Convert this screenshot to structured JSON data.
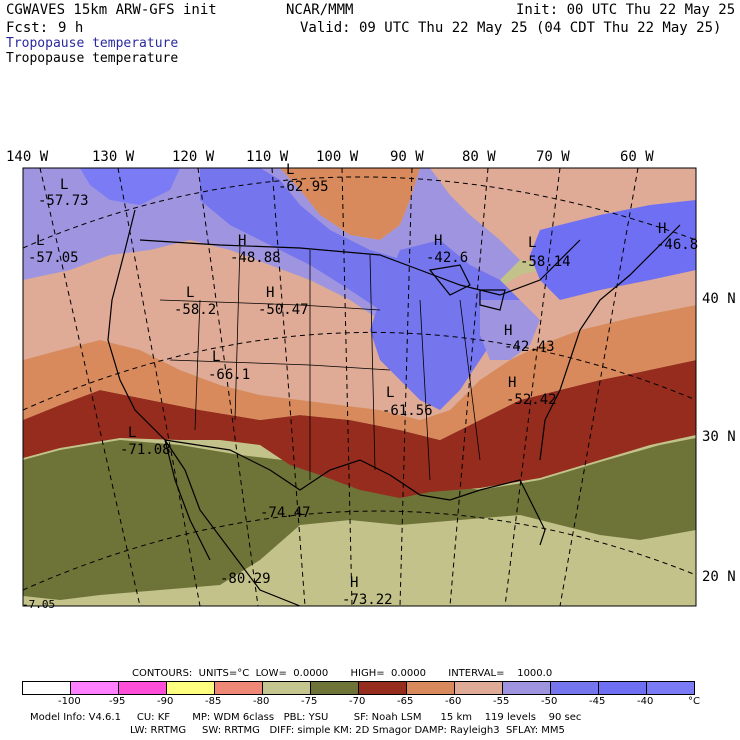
{
  "header": {
    "model": "CGWAVES 15km ARW-GFS init",
    "fcst_label": "Fcst:",
    "fcst_value": "9 h",
    "source": "NCAR/MMM",
    "init": "Init: 00 UTC Thu 22 May 25",
    "valid": "Valid: 09 UTC Thu 22 May 25 (04 CDT Thu 22 May 25)",
    "field1": "Tropopause temperature",
    "field2": "Tropopause temperature"
  },
  "map": {
    "lon_labels": [
      "140 W",
      "130 W",
      "120 W",
      "110 W",
      "100 W",
      "90 W",
      "80 W",
      "70 W",
      "60 W"
    ],
    "lat_labels": [
      "40 N",
      "30 N",
      "20 N"
    ],
    "extrema": [
      {
        "kind": "L",
        "value": "-57.73"
      },
      {
        "kind": "L",
        "value": "-57.05"
      },
      {
        "kind": "L",
        "value": "-62.95"
      },
      {
        "kind": "H",
        "value": "-48.88"
      },
      {
        "kind": "H",
        "value": "-42.6"
      },
      {
        "kind": "L",
        "value": "-58.14"
      },
      {
        "kind": "H",
        "value": "-46.8"
      },
      {
        "kind": "L",
        "value": "-58.2"
      },
      {
        "kind": "H",
        "value": "-50.47"
      },
      {
        "kind": "L",
        "value": "-66.1"
      },
      {
        "kind": "H",
        "value": "-42.43"
      },
      {
        "kind": "L",
        "value": "-61.56"
      },
      {
        "kind": "H",
        "value": "-52.42"
      },
      {
        "kind": "L",
        "value": "-71.08"
      },
      {
        "kind": "",
        "value": "-74.47"
      },
      {
        "kind": "",
        "value": "-80.29"
      },
      {
        "kind": "H",
        "value": "-73.22"
      },
      {
        "kind": "",
        "value": "-7.05"
      }
    ],
    "colors": {
      "lt_m75": "#c2c28a",
      "m75_m70": "#6e7438",
      "m70_m65": "#952c1e",
      "m65_m60": "#d98a5c",
      "m60_m55": "#dfaa96",
      "m55_m50": "#9f94e0",
      "m50_m45": "#7575ee",
      "m45_m40": "#6f6ff3",
      "gt_m40": "#7b7bf5"
    }
  },
  "contours": {
    "text": "CONTOURS:  UNITS=°C  LOW=  0.0000       HIGH=  0.0000       INTERVAL=    1000.0"
  },
  "colorbar": {
    "colors": [
      "#ffffff",
      "#ff80ff",
      "#ff4fd8",
      "#ffff80",
      "#f08878",
      "#c5c590",
      "#6e7438",
      "#952c1e",
      "#d98a5c",
      "#dfaa96",
      "#9f94e0",
      "#7575ee",
      "#6f6ff3",
      "#7b7bf5"
    ],
    "labels": [
      "-100",
      "-95",
      "-90",
      "-85",
      "-80",
      "-75",
      "-70",
      "-65",
      "-60",
      "-55",
      "-50",
      "-45",
      "-40",
      "°C"
    ]
  },
  "footer": {
    "line1": "Model Info: V4.6.1     CU: KF       MP: WDM 6class   PBL: YSU        SF: Noah LSM      15 km    119 levels    90 sec",
    "line2": "LW: RRTMG     SW: RRTMG   DIFF: simple KM: 2D Smagor DAMP: Rayleigh3  SFLAY: MM5"
  }
}
